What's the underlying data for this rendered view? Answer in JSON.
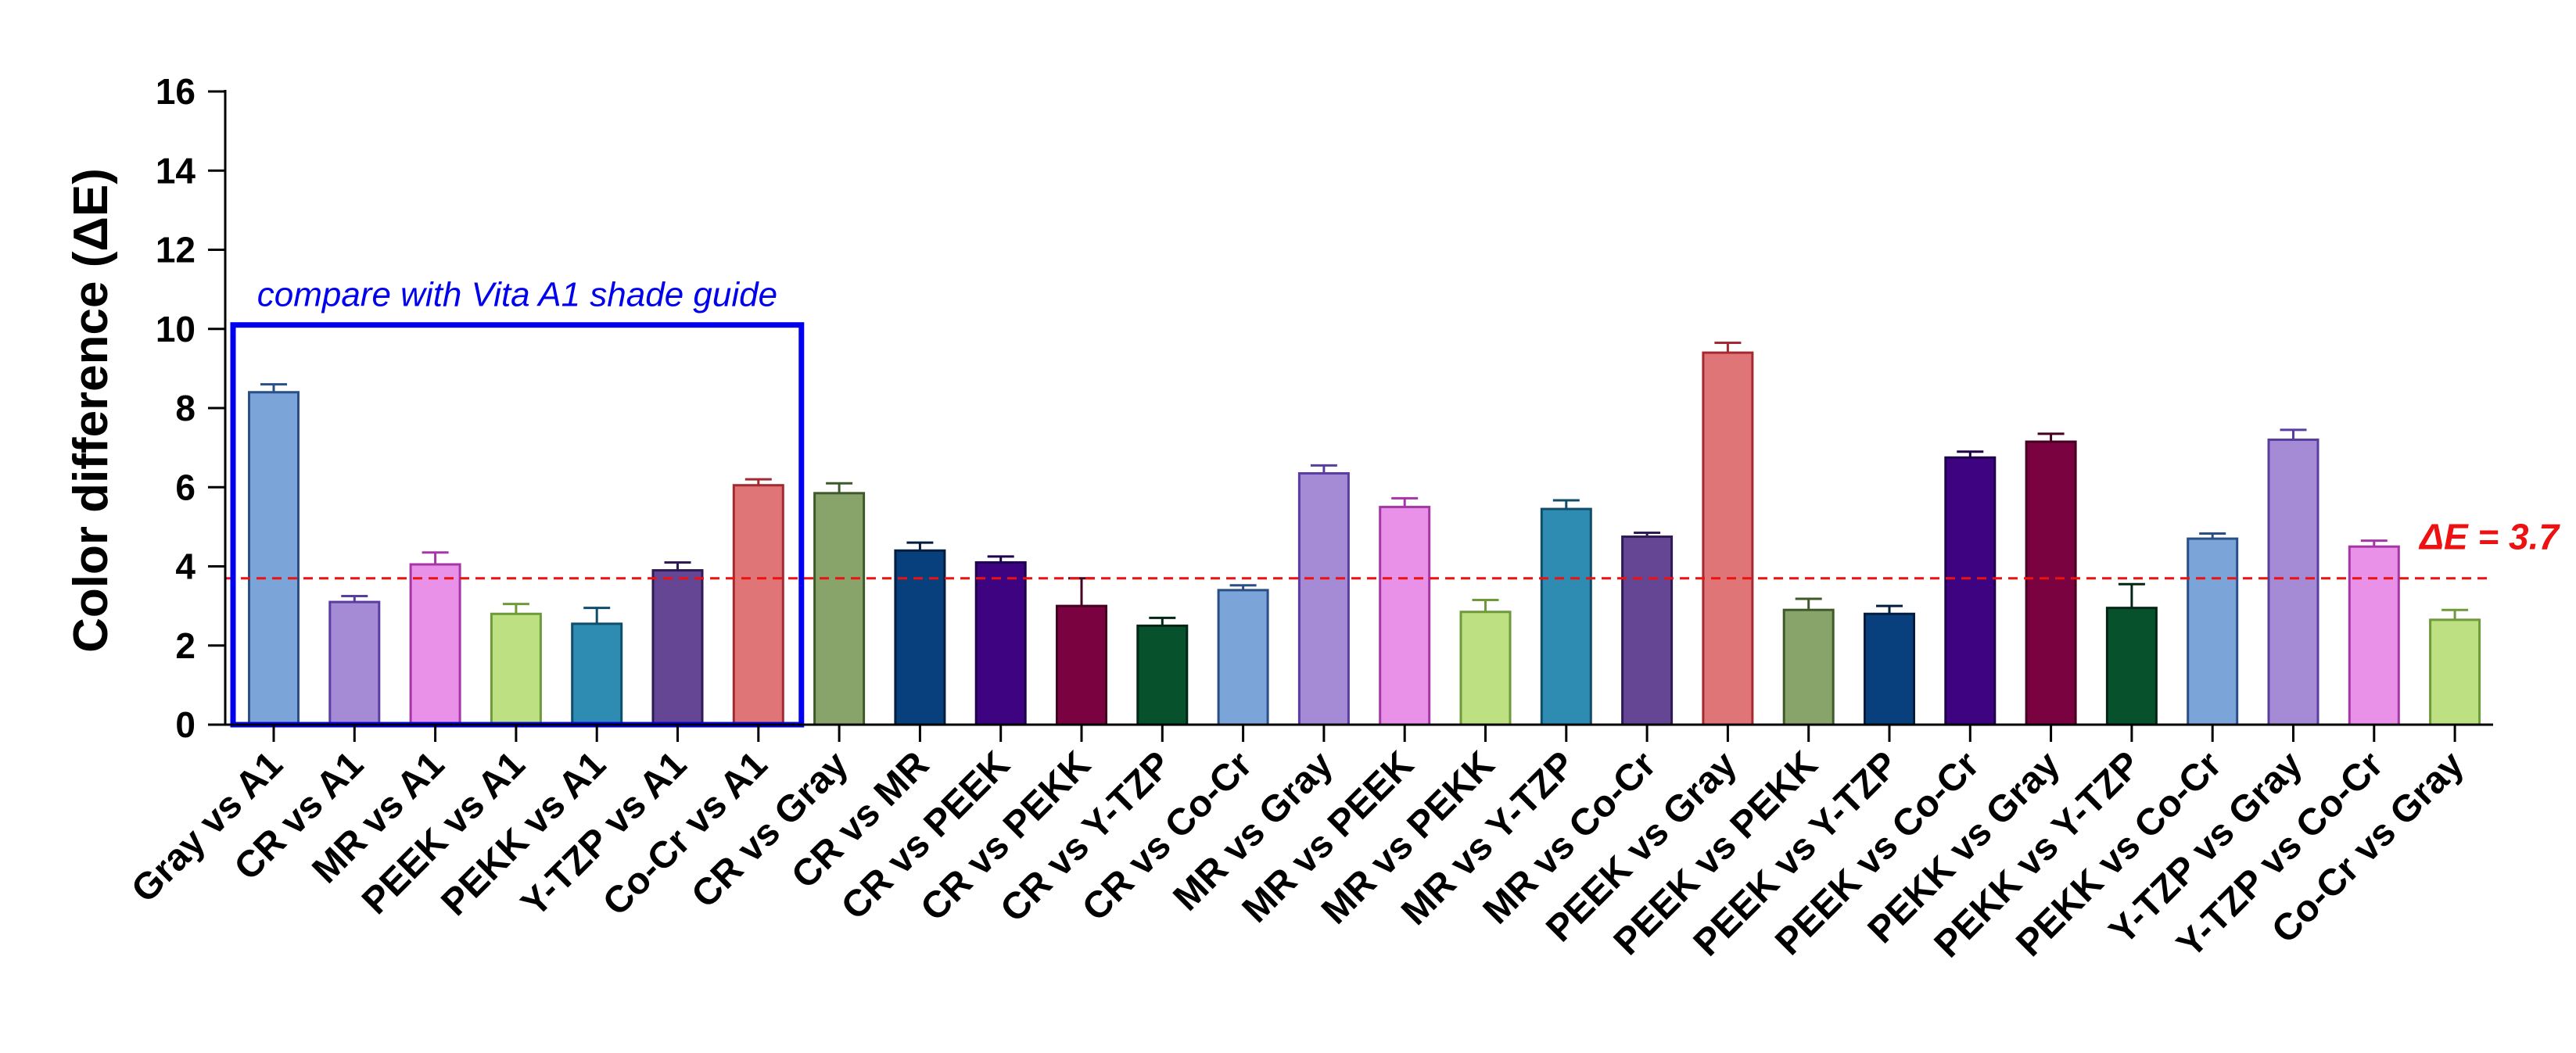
{
  "chart_data": {
    "type": "bar",
    "ylabel": "Color difference (ΔE)",
    "xlabel": "",
    "ylim": [
      0,
      16
    ],
    "yticks": [
      0,
      2,
      4,
      6,
      8,
      10,
      12,
      14,
      16
    ],
    "categories": [
      "Gray vs A1",
      "CR vs A1",
      "MR vs A1",
      "PEEK vs A1",
      "PEKK vs A1",
      "Y-TZP vs A1",
      "Co-Cr vs A1",
      "CR vs Gray",
      "CR vs MR",
      "CR vs PEEK",
      "CR vs PEKK",
      "CR vs Y-TZP",
      "CR vs Co-Cr",
      "MR vs Gray",
      "MR vs PEEK",
      "MR vs PEKK",
      "MR vs Y-TZP",
      "MR vs Co-Cr",
      "PEEK vs Gray",
      "PEEK vs PEKK",
      "PEEK vs Y-TZP",
      "PEEK vs Co-Cr",
      "PEKK vs Gray",
      "PEKK vs Y-TZP",
      "PEKK vs Co-Cr",
      "Y-TZP vs Gray",
      "Y-TZP vs Co-Cr",
      "Co-Cr vs Gray"
    ],
    "values": [
      8.4,
      3.1,
      4.05,
      2.8,
      2.55,
      3.9,
      6.05,
      5.85,
      4.4,
      4.1,
      3.0,
      2.5,
      3.4,
      6.35,
      5.5,
      2.85,
      5.45,
      4.75,
      9.4,
      2.9,
      2.8,
      6.75,
      7.15,
      2.95,
      4.7,
      7.2,
      4.5,
      2.65
    ],
    "errors": [
      0.2,
      0.15,
      0.3,
      0.25,
      0.4,
      0.2,
      0.15,
      0.25,
      0.2,
      0.15,
      0.7,
      0.2,
      0.12,
      0.2,
      0.22,
      0.3,
      0.22,
      0.1,
      0.25,
      0.28,
      0.2,
      0.15,
      0.2,
      0.6,
      0.13,
      0.25,
      0.15,
      0.25
    ],
    "colors": [
      "#7ba4d8",
      "#a58ad6",
      "#e991e9",
      "#bce082",
      "#2e8bb2",
      "#654694",
      "#e07578",
      "#88a46b",
      "#08407e",
      "#3e0380",
      "#7b0240",
      "#07522c",
      "#7ba4d8",
      "#a58ad6",
      "#e991e9",
      "#bce082",
      "#2e8bb2",
      "#654694",
      "#e07578",
      "#88a46b",
      "#08407e",
      "#3e0380",
      "#7b0240",
      "#07522c",
      "#7ba4d8",
      "#a58ad6",
      "#e991e9",
      "#bce082"
    ],
    "edge_colors": [
      "#2a4f88",
      "#5a3da0",
      "#a636a6",
      "#6f9a3a",
      "#104d6b",
      "#2e1a55",
      "#a32a30",
      "#3f5a2a",
      "#021d3d",
      "#1e004a",
      "#450021",
      "#022615",
      "#2a4f88",
      "#5a3da0",
      "#a636a6",
      "#6f9a3a",
      "#104d6b",
      "#2e1a55",
      "#a32a30",
      "#3f5a2a",
      "#021d3d",
      "#1e004a",
      "#450021",
      "#022615",
      "#2a4f88",
      "#5a3da0",
      "#a636a6",
      "#6f9a3a"
    ],
    "threshold": {
      "value": 3.7,
      "label": "ΔE = 3.7",
      "color": "#ee1111"
    },
    "highlight_box": {
      "label": "compare with Vita A1 shade guide",
      "from_category": 0,
      "to_category": 6,
      "top_value": 10.1,
      "color": "#0000ee"
    }
  }
}
